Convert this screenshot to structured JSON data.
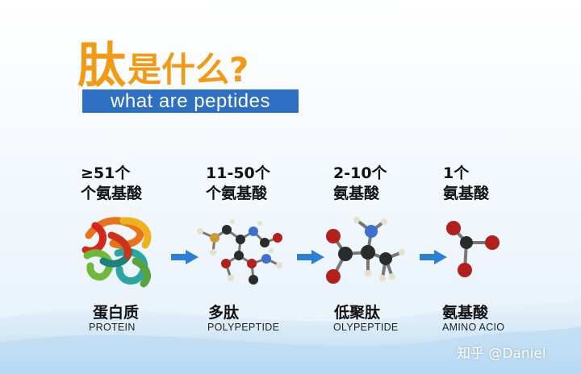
{
  "title": {
    "main": "肽",
    "rest": "是什么?"
  },
  "subtitle": "what are peptides",
  "stages": [
    {
      "count_line1": "≥51个",
      "count_line2": "个氨基酸",
      "name_cn": "蛋白质",
      "name_en": "PROTEIN"
    },
    {
      "count_line1": "11-50个",
      "count_line2": "个氨基酸",
      "name_cn": "多肽",
      "name_en": "POLYPEPTIDE"
    },
    {
      "count_line1": "2-10个",
      "count_line2": "氨基酸",
      "name_cn": "低聚肽",
      "name_en": "OLYPEPTIDE"
    },
    {
      "count_line1": "1个",
      "count_line2": "氨基酸",
      "name_cn": "氨基酸",
      "name_en": "AMINO ACIO"
    }
  ],
  "watermark": "知乎 @Daniel",
  "colors": {
    "title": "#f39a14",
    "subtitle_bg": "#2c6fc3",
    "arrow": "#2b7fd6"
  }
}
